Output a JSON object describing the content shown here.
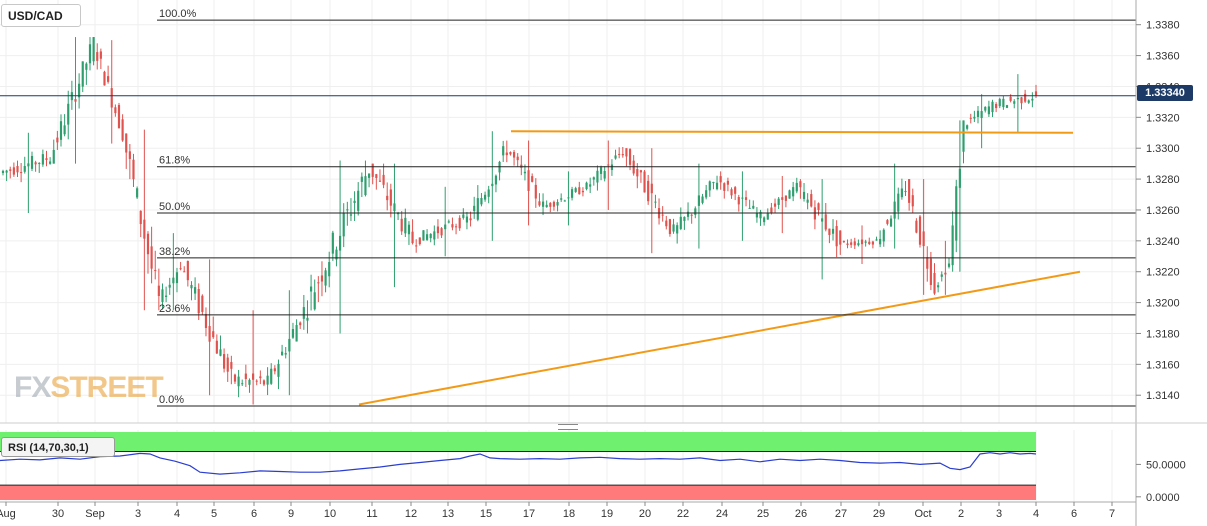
{
  "ticker": "USD/CAD",
  "indicator_label": "RSI (14,70,30,1)",
  "last_price_label": "1.33340",
  "logo": {
    "part1": "FX",
    "part2": "STREET"
  },
  "colors": {
    "bull": "#2e9e6e",
    "bear": "#e0524e",
    "trend": "#f29a16",
    "rsi_line": "#2a3ed0",
    "rsi_over": "#6ff06f",
    "rsi_under": "#ff7b7b",
    "price_tag": "#1d3a66"
  },
  "chart_data": [
    {
      "type": "candlestick",
      "title": "USD/CAD",
      "x_ticks": [
        "Aug",
        "30",
        "Sep",
        "3",
        "4",
        "5",
        "6",
        "9",
        "10",
        "11",
        "12",
        "13",
        "15",
        "17",
        "18",
        "19",
        "20",
        "22",
        "24",
        "25",
        "26",
        "27",
        "29",
        "Oct",
        "2",
        "3",
        "4",
        "6",
        "7"
      ],
      "y_ticks": [
        "1.3380",
        "1.3360",
        "1.3340",
        "1.3320",
        "1.3300",
        "1.3280",
        "1.3260",
        "1.3240",
        "1.3220",
        "1.3200",
        "1.3180",
        "1.3160",
        "1.3140"
      ],
      "ylim": [
        1.3122,
        1.3396
      ],
      "last_price": 1.3334,
      "fibonacci": [
        {
          "label": "100.0%",
          "value": 1.3383
        },
        {
          "label": "61.8%",
          "value": 1.3288
        },
        {
          "label": "50.0%",
          "value": 1.3258
        },
        {
          "label": "38.2%",
          "value": 1.3229
        },
        {
          "label": "23.6%",
          "value": 1.3192
        },
        {
          "label": "0.0%",
          "value": 1.3133
        }
      ],
      "trendlines": [
        {
          "name": "resistance",
          "start": [
            "Sep 16",
            1.3311
          ],
          "end": [
            "Oct 4",
            1.331
          ]
        },
        {
          "name": "support",
          "start": [
            "Sep 10",
            1.3134
          ],
          "end": [
            "Oct 4",
            1.322
          ]
        }
      ],
      "segments": [
        {
          "n": 14,
          "start": 1.3284,
          "end": 1.3294,
          "low": 1.3258,
          "high": 1.331
        },
        {
          "n": 12,
          "start": 1.3294,
          "end": 1.3368,
          "low": 1.329,
          "high": 1.3372
        },
        {
          "n": 8,
          "start": 1.3368,
          "end": 1.331,
          "low": 1.3303,
          "high": 1.337
        },
        {
          "n": 10,
          "start": 1.331,
          "end": 1.32,
          "low": 1.3195,
          "high": 1.3312
        },
        {
          "n": 6,
          "start": 1.32,
          "end": 1.3225,
          "low": 1.3195,
          "high": 1.3245
        },
        {
          "n": 14,
          "start": 1.3225,
          "end": 1.315,
          "low": 1.314,
          "high": 1.3228
        },
        {
          "n": 10,
          "start": 1.315,
          "end": 1.3148,
          "low": 1.3134,
          "high": 1.3195
        },
        {
          "n": 10,
          "start": 1.3148,
          "end": 1.3195,
          "low": 1.314,
          "high": 1.3208
        },
        {
          "n": 18,
          "start": 1.3195,
          "end": 1.3288,
          "low": 1.318,
          "high": 1.3292
        },
        {
          "n": 12,
          "start": 1.3288,
          "end": 1.324,
          "low": 1.321,
          "high": 1.329
        },
        {
          "n": 16,
          "start": 1.324,
          "end": 1.3255,
          "low": 1.323,
          "high": 1.3275
        },
        {
          "n": 10,
          "start": 1.3255,
          "end": 1.33,
          "low": 1.324,
          "high": 1.3311
        },
        {
          "n": 10,
          "start": 1.33,
          "end": 1.3262,
          "low": 1.325,
          "high": 1.3305
        },
        {
          "n": 12,
          "start": 1.3262,
          "end": 1.3275,
          "low": 1.325,
          "high": 1.3285
        },
        {
          "n": 10,
          "start": 1.3275,
          "end": 1.3298,
          "low": 1.326,
          "high": 1.3305
        },
        {
          "n": 14,
          "start": 1.3298,
          "end": 1.3245,
          "low": 1.3232,
          "high": 1.33
        },
        {
          "n": 12,
          "start": 1.3245,
          "end": 1.328,
          "low": 1.3235,
          "high": 1.329
        },
        {
          "n": 12,
          "start": 1.328,
          "end": 1.3255,
          "low": 1.324,
          "high": 1.3285
        },
        {
          "n": 10,
          "start": 1.3255,
          "end": 1.3275,
          "low": 1.3245,
          "high": 1.3282
        },
        {
          "n": 12,
          "start": 1.3275,
          "end": 1.3238,
          "low": 1.3215,
          "high": 1.328
        },
        {
          "n": 10,
          "start": 1.3238,
          "end": 1.324,
          "low": 1.3225,
          "high": 1.325
        },
        {
          "n": 8,
          "start": 1.324,
          "end": 1.3275,
          "low": 1.3235,
          "high": 1.329
        },
        {
          "n": 8,
          "start": 1.3275,
          "end": 1.321,
          "low": 1.3205,
          "high": 1.328
        },
        {
          "n": 4,
          "start": 1.321,
          "end": 1.3225,
          "low": 1.3205,
          "high": 1.324
        },
        {
          "n": 4,
          "start": 1.3225,
          "end": 1.3315,
          "low": 1.322,
          "high": 1.3318
        },
        {
          "n": 8,
          "start": 1.3315,
          "end": 1.3328,
          "low": 1.33,
          "high": 1.3335
        },
        {
          "n": 12,
          "start": 1.3328,
          "end": 1.3334,
          "low": 1.331,
          "high": 1.3348
        }
      ]
    },
    {
      "type": "line",
      "title": "RSI (14,70,30,1)",
      "y_ticks": [
        "50.0000",
        "0.0000"
      ],
      "ylim": [
        -8,
        100
      ],
      "levels": [
        70,
        30
      ],
      "series": [
        {
          "name": "RSI",
          "points": [
            [
              0,
              56
            ],
            [
              20,
              58
            ],
            [
              40,
              57
            ],
            [
              60,
              60
            ],
            [
              80,
              58
            ],
            [
              100,
              62
            ],
            [
              120,
              63
            ],
            [
              140,
              67
            ],
            [
              150,
              66
            ],
            [
              160,
              60
            ],
            [
              175,
              55
            ],
            [
              190,
              48
            ],
            [
              200,
              38
            ],
            [
              220,
              35
            ],
            [
              240,
              37
            ],
            [
              260,
              40
            ],
            [
              280,
              39
            ],
            [
              300,
              38
            ],
            [
              320,
              38
            ],
            [
              340,
              40
            ],
            [
              360,
              43
            ],
            [
              380,
              46
            ],
            [
              400,
              50
            ],
            [
              420,
              53
            ],
            [
              440,
              56
            ],
            [
              460,
              59
            ],
            [
              470,
              63
            ],
            [
              480,
              66
            ],
            [
              490,
              60
            ],
            [
              500,
              59
            ],
            [
              520,
              58
            ],
            [
              540,
              59
            ],
            [
              560,
              58
            ],
            [
              580,
              60
            ],
            [
              600,
              61
            ],
            [
              620,
              59
            ],
            [
              640,
              58
            ],
            [
              660,
              59
            ],
            [
              680,
              58
            ],
            [
              700,
              60
            ],
            [
              720,
              56
            ],
            [
              740,
              58
            ],
            [
              760,
              54
            ],
            [
              780,
              58
            ],
            [
              800,
              56
            ],
            [
              820,
              58
            ],
            [
              840,
              56
            ],
            [
              860,
              53
            ],
            [
              880,
              52
            ],
            [
              900,
              53
            ],
            [
              920,
              50
            ],
            [
              940,
              52
            ],
            [
              950,
              44
            ],
            [
              960,
              42
            ],
            [
              970,
              46
            ],
            [
              980,
              66
            ],
            [
              990,
              68
            ],
            [
              1000,
              66
            ],
            [
              1010,
              68
            ],
            [
              1020,
              66
            ],
            [
              1030,
              67
            ],
            [
              1036,
              66
            ]
          ]
        }
      ]
    }
  ]
}
